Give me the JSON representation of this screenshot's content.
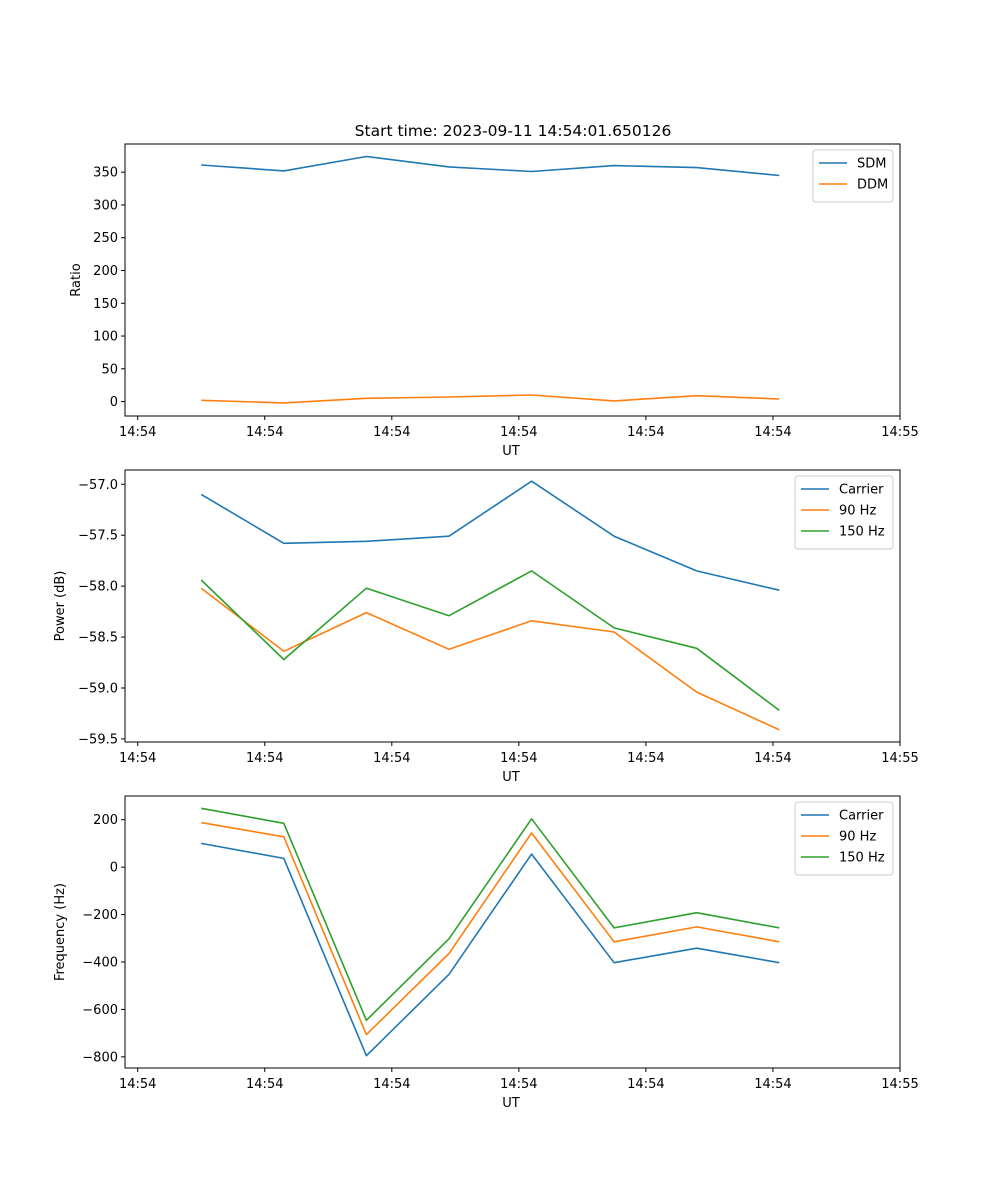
{
  "figure_title": "Start time: 2023-09-11 14:54:01.650126",
  "chart_data": [
    {
      "type": "line",
      "xlabel": "UT",
      "ylabel": "Ratio",
      "x_ticks": [
        "14:54",
        "14:54",
        "14:54",
        "14:54",
        "14:54",
        "14:54",
        "14:55"
      ],
      "x_tick_positions": [
        0,
        1,
        2,
        3,
        4,
        5,
        6
      ],
      "xlim": [
        -0.1,
        6.0
      ],
      "x": [
        0.5,
        1.15,
        1.8,
        2.45,
        3.1,
        3.75,
        4.4,
        5.05
      ],
      "ylim": [
        -22,
        393
      ],
      "y_ticks": [
        0,
        50,
        100,
        150,
        200,
        250,
        300,
        350
      ],
      "y_tick_labels": [
        "0",
        "50",
        "100",
        "150",
        "200",
        "250",
        "300",
        "350"
      ],
      "legend_position": "top-right",
      "series": [
        {
          "name": "SDM",
          "color": "#1f77b4",
          "values": [
            361,
            352,
            374,
            358,
            351,
            360,
            357,
            345
          ]
        },
        {
          "name": "DDM",
          "color": "#ff7f0e",
          "values": [
            2,
            -2,
            5,
            7,
            10,
            1,
            9,
            4
          ]
        }
      ]
    },
    {
      "type": "line",
      "xlabel": "UT",
      "ylabel": "Power (dB)",
      "x_ticks": [
        "14:54",
        "14:54",
        "14:54",
        "14:54",
        "14:54",
        "14:54",
        "14:55"
      ],
      "x_tick_positions": [
        0,
        1,
        2,
        3,
        4,
        5,
        6
      ],
      "xlim": [
        -0.1,
        6.0
      ],
      "x": [
        0.5,
        1.15,
        1.8,
        2.45,
        3.1,
        3.75,
        4.4,
        5.05
      ],
      "ylim": [
        -59.53,
        -56.86
      ],
      "y_ticks": [
        -57.0,
        -57.5,
        -58.0,
        -58.5,
        -59.0,
        -59.5
      ],
      "y_tick_labels": [
        "−57.0",
        "−57.5",
        "−58.0",
        "−58.5",
        "−59.0",
        "−59.5"
      ],
      "legend_position": "top-right",
      "series": [
        {
          "name": "Carrier",
          "color": "#1f77b4",
          "values": [
            -57.1,
            -57.58,
            -57.56,
            -57.51,
            -56.97,
            -57.51,
            -57.85,
            -58.04
          ]
        },
        {
          "name": "90 Hz",
          "color": "#ff7f0e",
          "values": [
            -58.02,
            -58.64,
            -58.26,
            -58.62,
            -58.34,
            -58.45,
            -59.04,
            -59.41
          ]
        },
        {
          "name": "150 Hz",
          "color": "#2ca02c",
          "values": [
            -57.94,
            -58.72,
            -58.02,
            -58.29,
            -57.85,
            -58.41,
            -58.61,
            -59.22
          ]
        }
      ]
    },
    {
      "type": "line",
      "xlabel": "UT",
      "ylabel": "Frequency (Hz)",
      "x_ticks": [
        "14:54",
        "14:54",
        "14:54",
        "14:54",
        "14:54",
        "14:54",
        "14:55"
      ],
      "x_tick_positions": [
        0,
        1,
        2,
        3,
        4,
        5,
        6
      ],
      "xlim": [
        -0.1,
        6.0
      ],
      "x": [
        0.5,
        1.15,
        1.8,
        2.45,
        3.1,
        3.75,
        4.4,
        5.05
      ],
      "ylim": [
        -847,
        300
      ],
      "y_ticks": [
        200,
        0,
        -200,
        -400,
        -600,
        -800
      ],
      "y_tick_labels": [
        "200",
        "0",
        "−200",
        "−400",
        "−600",
        "−800"
      ],
      "legend_position": "top-right",
      "series": [
        {
          "name": "Carrier",
          "color": "#1f77b4",
          "values": [
            100,
            37,
            -795,
            -452,
            55,
            -403,
            -342,
            -403
          ]
        },
        {
          "name": "90 Hz",
          "color": "#ff7f0e",
          "values": [
            188,
            128,
            -706,
            -364,
            144,
            -315,
            -252,
            -315
          ]
        },
        {
          "name": "150 Hz",
          "color": "#2ca02c",
          "values": [
            248,
            185,
            -646,
            -302,
            204,
            -256,
            -192,
            -256
          ]
        }
      ]
    }
  ]
}
